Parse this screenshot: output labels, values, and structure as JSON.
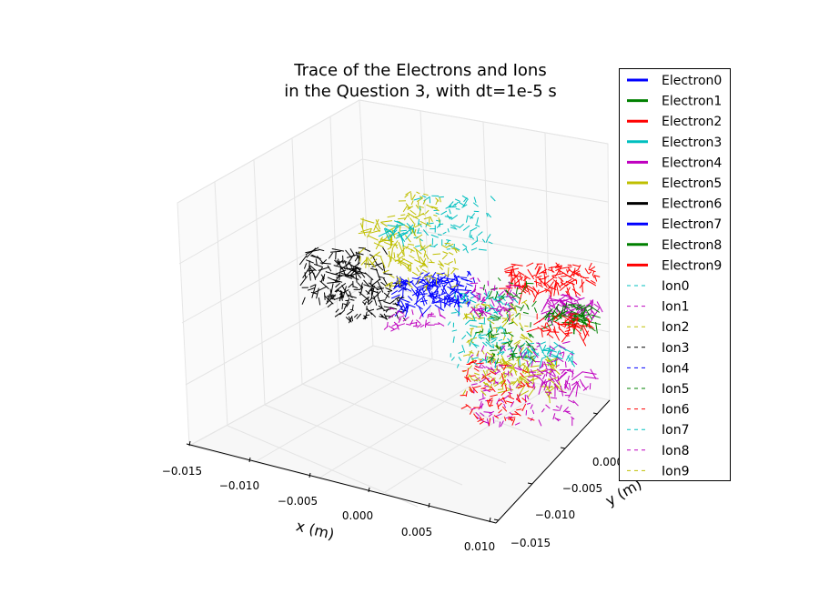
{
  "chart_data": {
    "type": "line",
    "projection": "3d",
    "title": "Trace of the Electrons and Ions\nin the Question 3, with dt=1e-5 s",
    "title_lines": [
      "Trace of the Electrons and Ions",
      "in the Question 3, with dt=1e-5 s"
    ],
    "xlabel": "x (m)",
    "ylabel": "y (m)",
    "x_ticks": [
      "−0.015",
      "−0.010",
      "−0.005",
      "0.000",
      "0.005",
      "0.010"
    ],
    "y_ticks": [
      "−0.015",
      "−0.010",
      "−0.005",
      "0.000"
    ],
    "xlim": [
      -0.015,
      0.01
    ],
    "ylim": [
      -0.015,
      0.003
    ],
    "grid": true,
    "legend_position": "right",
    "series": [
      {
        "name": "Electron0",
        "color": "#0000ff",
        "style": "solid"
      },
      {
        "name": "Electron1",
        "color": "#008000",
        "style": "solid"
      },
      {
        "name": "Electron2",
        "color": "#ff0000",
        "style": "solid"
      },
      {
        "name": "Electron3",
        "color": "#00bfbf",
        "style": "solid"
      },
      {
        "name": "Electron4",
        "color": "#bf00bf",
        "style": "solid"
      },
      {
        "name": "Electron5",
        "color": "#bfbf00",
        "style": "solid"
      },
      {
        "name": "Electron6",
        "color": "#000000",
        "style": "solid"
      },
      {
        "name": "Electron7",
        "color": "#0000ff",
        "style": "solid"
      },
      {
        "name": "Electron8",
        "color": "#008000",
        "style": "solid"
      },
      {
        "name": "Electron9",
        "color": "#ff0000",
        "style": "solid"
      },
      {
        "name": "Ion0",
        "color": "#00bfbf",
        "style": "dashed"
      },
      {
        "name": "Ion1",
        "color": "#bf00bf",
        "style": "dashed"
      },
      {
        "name": "Ion2",
        "color": "#bfbf00",
        "style": "dashed"
      },
      {
        "name": "Ion3",
        "color": "#000000",
        "style": "dashed"
      },
      {
        "name": "Ion4",
        "color": "#0000ff",
        "style": "dashed"
      },
      {
        "name": "Ion5",
        "color": "#008000",
        "style": "dashed"
      },
      {
        "name": "Ion6",
        "color": "#ff0000",
        "style": "dashed"
      },
      {
        "name": "Ion7",
        "color": "#00bfbf",
        "style": "dashed"
      },
      {
        "name": "Ion8",
        "color": "#bf00bf",
        "style": "dashed"
      },
      {
        "name": "Ion9",
        "color": "#bfbf00",
        "style": "dashed"
      }
    ]
  }
}
